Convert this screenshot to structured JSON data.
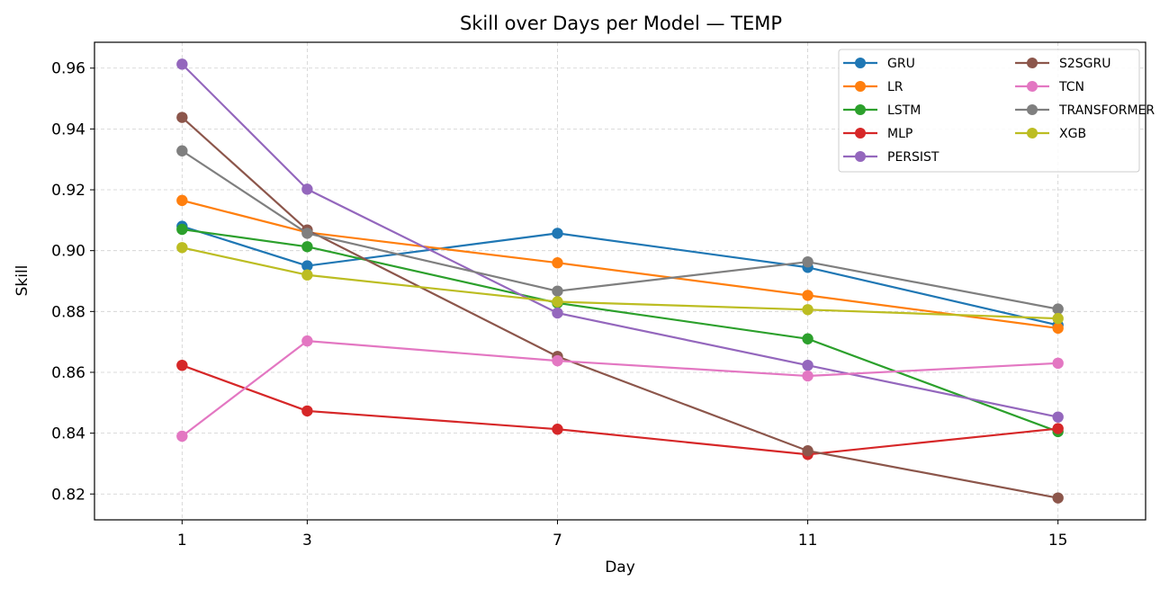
{
  "chart_data": {
    "type": "line",
    "title": "Skill over Days per Model — TEMP",
    "xlabel": "Day",
    "ylabel": "Skill",
    "x": [
      1,
      3,
      7,
      11,
      15
    ],
    "x_ticks": [
      1,
      3,
      7,
      11,
      15
    ],
    "x_tick_labels": [
      "1",
      "3",
      "7",
      "11",
      "15"
    ],
    "xlim": [
      -0.4,
      16.4
    ],
    "y_ticks": [
      0.82,
      0.84,
      0.86,
      0.88,
      0.9,
      0.92,
      0.94,
      0.96
    ],
    "y_tick_labels": [
      "0.82",
      "0.84",
      "0.86",
      "0.88",
      "0.90",
      "0.92",
      "0.94",
      "0.96"
    ],
    "ylim": [
      0.8115,
      0.9685
    ],
    "grid": true,
    "legend_position": "top-right",
    "legend_columns": 2,
    "series": [
      {
        "name": "GRU",
        "color": "#1f77b4",
        "values": [
          0.908,
          0.895,
          0.9057,
          0.8945,
          0.8755
        ]
      },
      {
        "name": "LR",
        "color": "#ff7f0e",
        "values": [
          0.9165,
          0.906,
          0.896,
          0.8853,
          0.8745
        ]
      },
      {
        "name": "LSTM",
        "color": "#2ca02c",
        "values": [
          0.907,
          0.9013,
          0.8828,
          0.871,
          0.8405
        ]
      },
      {
        "name": "MLP",
        "color": "#d62728",
        "values": [
          0.8623,
          0.8473,
          0.8413,
          0.833,
          0.8415
        ]
      },
      {
        "name": "PERSIST",
        "color": "#9467bd",
        "values": [
          0.9613,
          0.9202,
          0.8795,
          0.8623,
          0.8453
        ]
      },
      {
        "name": "S2SGRU",
        "color": "#8c564b",
        "values": [
          0.9438,
          0.9068,
          0.8652,
          0.8342,
          0.8187
        ]
      },
      {
        "name": "TCN",
        "color": "#e377c2",
        "values": [
          0.839,
          0.8703,
          0.8638,
          0.8588,
          0.863
        ]
      },
      {
        "name": "TRANSFORMER",
        "color": "#7f7f7f",
        "values": [
          0.9328,
          0.9057,
          0.8867,
          0.8963,
          0.8808
        ]
      },
      {
        "name": "XGB",
        "color": "#bcbd22",
        "values": [
          0.901,
          0.892,
          0.8832,
          0.8806,
          0.8777
        ]
      }
    ]
  }
}
